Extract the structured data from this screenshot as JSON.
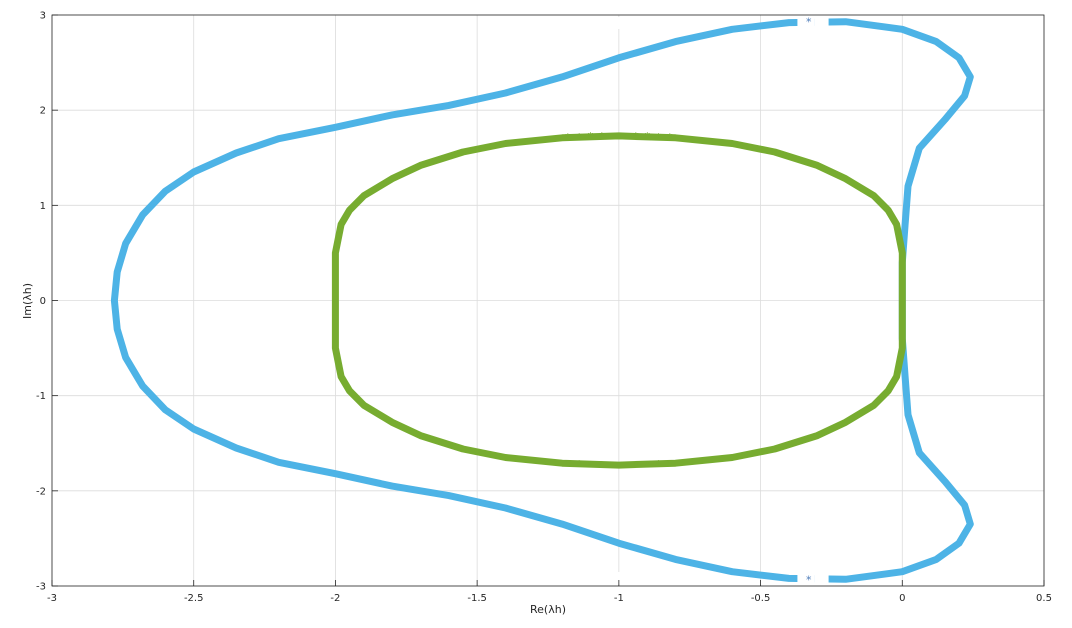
{
  "chart_data": {
    "type": "scatter",
    "marker": "asterisk",
    "xlabel": "Re(λh)",
    "ylabel": "Im(λh)",
    "xlim": [
      -3,
      0.5
    ],
    "ylim": [
      -3,
      3
    ],
    "xticks": [
      "-3",
      "-2.5",
      "-2",
      "-1.5",
      "-1",
      "-0.5",
      "0",
      "0.5"
    ],
    "yticks": [
      "-3",
      "-2",
      "-1",
      "0",
      "1",
      "2",
      "3"
    ],
    "grid": true,
    "legend": "none",
    "series": [
      {
        "color": "#4db3e6",
        "marker_color": "#4a7ab8",
        "points": [
          [
            -2.78,
            0.0
          ],
          [
            -2.77,
            0.3
          ],
          [
            -2.74,
            0.6
          ],
          [
            -2.68,
            0.9
          ],
          [
            -2.6,
            1.15
          ],
          [
            -2.5,
            1.35
          ],
          [
            -2.35,
            1.55
          ],
          [
            -2.2,
            1.7
          ],
          [
            -2.0,
            1.82
          ],
          [
            -1.8,
            1.95
          ],
          [
            -1.6,
            2.05
          ],
          [
            -1.4,
            2.18
          ],
          [
            -1.2,
            2.35
          ],
          [
            -1.0,
            2.55
          ],
          [
            -0.8,
            2.72
          ],
          [
            -0.6,
            2.85
          ],
          [
            -0.4,
            2.92
          ],
          [
            -0.2,
            2.93
          ],
          [
            0.0,
            2.85
          ],
          [
            0.12,
            2.72
          ],
          [
            0.2,
            2.55
          ],
          [
            0.24,
            2.35
          ],
          [
            0.22,
            2.15
          ],
          [
            0.15,
            1.9
          ],
          [
            0.06,
            1.6
          ],
          [
            0.02,
            1.2
          ],
          [
            0.01,
            0.8
          ],
          [
            0.0,
            0.4
          ],
          [
            0.0,
            0.0
          ],
          [
            0.0,
            -0.4
          ],
          [
            0.01,
            -0.8
          ],
          [
            0.02,
            -1.2
          ],
          [
            0.06,
            -1.6
          ],
          [
            0.15,
            -1.9
          ],
          [
            0.22,
            -2.15
          ],
          [
            0.24,
            -2.35
          ],
          [
            0.2,
            -2.55
          ],
          [
            0.12,
            -2.72
          ],
          [
            0.0,
            -2.85
          ],
          [
            -0.2,
            -2.93
          ],
          [
            -0.4,
            -2.92
          ],
          [
            -0.6,
            -2.85
          ],
          [
            -0.8,
            -2.72
          ],
          [
            -1.0,
            -2.55
          ],
          [
            -1.2,
            -2.35
          ],
          [
            -1.4,
            -2.18
          ],
          [
            -1.6,
            -2.05
          ],
          [
            -1.8,
            -1.95
          ],
          [
            -2.0,
            -1.82
          ],
          [
            -2.2,
            -1.7
          ],
          [
            -2.35,
            -1.55
          ],
          [
            -2.5,
            -1.35
          ],
          [
            -2.6,
            -1.15
          ],
          [
            -2.68,
            -0.9
          ],
          [
            -2.74,
            -0.6
          ],
          [
            -2.77,
            -0.3
          ],
          [
            -2.78,
            0.0
          ]
        ],
        "gaps": [
          [
            -0.37,
            -0.31
          ],
          [
            -0.31,
            -0.26
          ]
        ],
        "isolated_points": [
          [
            -0.33,
            2.93
          ],
          [
            -0.33,
            -2.93
          ]
        ]
      },
      {
        "color": "#77ac30",
        "marker_color": "#77ac30",
        "points": [
          [
            -2.0,
            0.0
          ],
          [
            -2.0,
            0.5
          ],
          [
            -1.98,
            0.8
          ],
          [
            -1.95,
            0.95
          ],
          [
            -1.9,
            1.1
          ],
          [
            -1.8,
            1.28
          ],
          [
            -1.7,
            1.42
          ],
          [
            -1.55,
            1.56
          ],
          [
            -1.4,
            1.65
          ],
          [
            -1.2,
            1.71
          ],
          [
            -1.0,
            1.73
          ],
          [
            -0.8,
            1.71
          ],
          [
            -0.6,
            1.65
          ],
          [
            -0.45,
            1.56
          ],
          [
            -0.3,
            1.42
          ],
          [
            -0.2,
            1.28
          ],
          [
            -0.1,
            1.1
          ],
          [
            -0.05,
            0.95
          ],
          [
            -0.02,
            0.8
          ],
          [
            0.0,
            0.5
          ],
          [
            0.0,
            0.0
          ],
          [
            0.0,
            -0.5
          ],
          [
            -0.02,
            -0.8
          ],
          [
            -0.05,
            -0.95
          ],
          [
            -0.1,
            -1.1
          ],
          [
            -0.2,
            -1.28
          ],
          [
            -0.3,
            -1.42
          ],
          [
            -0.45,
            -1.56
          ],
          [
            -0.6,
            -1.65
          ],
          [
            -0.8,
            -1.71
          ],
          [
            -1.0,
            -1.73
          ],
          [
            -1.2,
            -1.71
          ],
          [
            -1.4,
            -1.65
          ],
          [
            -1.55,
            -1.56
          ],
          [
            -1.7,
            -1.42
          ],
          [
            -1.8,
            -1.28
          ],
          [
            -1.9,
            -1.1
          ],
          [
            -1.95,
            -0.95
          ],
          [
            -1.98,
            -0.8
          ],
          [
            -2.0,
            -0.5
          ],
          [
            -2.0,
            0.0
          ]
        ],
        "gaps": [
          [
            -1.08,
            -0.92
          ]
        ],
        "isolated_points": [
          [
            -1.06,
            1.73
          ],
          [
            -1.1,
            1.73
          ],
          [
            -1.14,
            1.72
          ],
          [
            -1.18,
            1.72
          ],
          [
            -0.94,
            1.73
          ],
          [
            -0.9,
            1.73
          ],
          [
            -0.86,
            1.72
          ],
          [
            -0.82,
            1.72
          ],
          [
            -1.06,
            -1.73
          ],
          [
            -1.1,
            -1.73
          ],
          [
            -1.14,
            -1.72
          ],
          [
            -1.18,
            -1.72
          ],
          [
            -0.94,
            -1.73
          ],
          [
            -0.9,
            -1.73
          ],
          [
            -0.86,
            -1.72
          ],
          [
            -0.82,
            -1.72
          ]
        ]
      }
    ]
  }
}
